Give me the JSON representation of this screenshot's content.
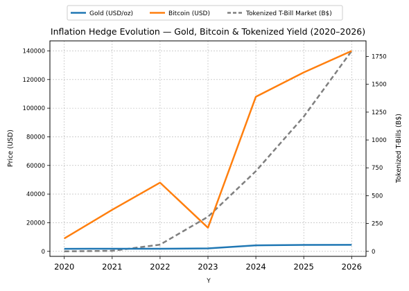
{
  "chart_data": {
    "type": "line",
    "title": "Inflation Hedge Evolution — Gold, Bitcoin & Tokenized Yield (2020–2026)",
    "xlabel": "Y",
    "ylabel_left": "Price (USD)",
    "ylabel_right": "Tokenized T-Bills (B$)",
    "x": [
      2020,
      2021,
      2022,
      2023,
      2024,
      2025,
      2026
    ],
    "xlim": [
      2019.7,
      2026.3
    ],
    "ylim_left": [
      -3500,
      147000
    ],
    "ylim_right": [
      -45,
      1890
    ],
    "yticks_left": [
      0,
      20000,
      40000,
      60000,
      80000,
      100000,
      120000,
      140000
    ],
    "yticks_right": [
      0,
      250,
      500,
      750,
      1000,
      1250,
      1500,
      1750
    ],
    "grid": true,
    "legend_position": "top-center",
    "series": [
      {
        "name": "Gold (USD/oz)",
        "axis": "left",
        "color": "#1f77b4",
        "dash": "solid",
        "values": [
          1770,
          1800,
          1800,
          2060,
          4200,
          4500,
          4550
        ]
      },
      {
        "name": "Bitcoin (USD)",
        "axis": "left",
        "color": "#ff7f0e",
        "dash": "solid",
        "values": [
          9000,
          29000,
          48000,
          16500,
          108000,
          125000,
          140000
        ]
      },
      {
        "name": "Tokenized T-Bill Market (B$)",
        "axis": "right",
        "color": "#7f7f7f",
        "dash": "dashed",
        "values": [
          0,
          5,
          60,
          310,
          720,
          1210,
          1800
        ]
      }
    ]
  }
}
